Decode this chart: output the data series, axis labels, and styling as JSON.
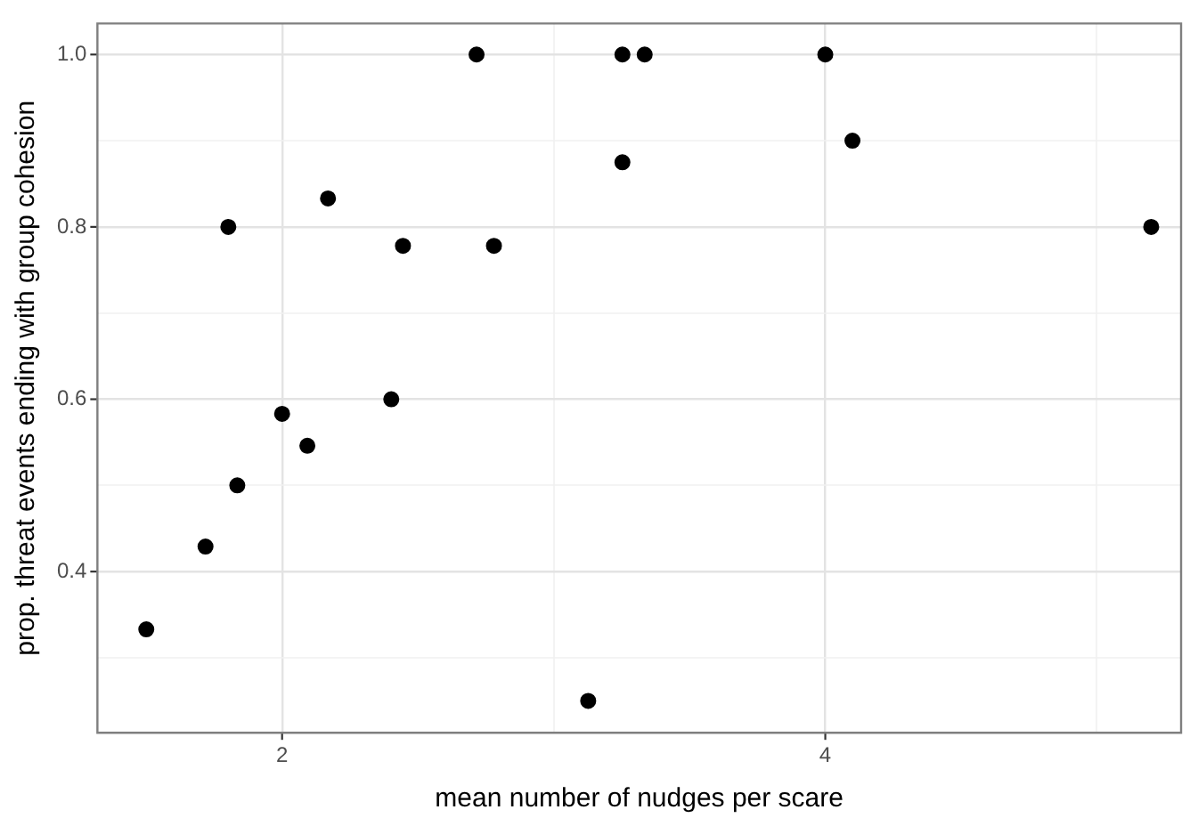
{
  "chart_data": {
    "type": "scatter",
    "xlabel": "mean number of nudges per scare",
    "ylabel": "prop. threat events ending with group cohesion",
    "x": [
      1.5,
      1.718,
      1.802,
      1.835,
      2.0,
      2.093,
      2.169,
      2.402,
      2.445,
      2.716,
      2.78,
      3.127,
      3.253,
      3.253,
      3.335,
      4.0,
      4.1,
      5.2
    ],
    "series": [
      {
        "color": "#000000",
        "values": [
          0.333,
          0.429,
          0.8,
          0.5,
          0.583,
          0.546,
          0.833,
          0.6,
          0.778,
          1.0,
          0.778,
          0.25,
          1.0,
          0.875,
          1.0,
          1.0,
          0.9,
          0.8
        ]
      }
    ],
    "xlim": [
      1.32,
      5.31
    ],
    "ylim": [
      0.213,
      1.036
    ],
    "xticks": [
      2,
      {
        "value": 3,
        "label": null
      },
      4,
      {
        "value": 5,
        "label": null
      }
    ],
    "yticks": [
      {
        "value": 0.3,
        "label": null
      },
      0.4,
      {
        "value": 0.5,
        "label": null
      },
      0.6,
      {
        "value": 0.7,
        "label": null
      },
      0.8,
      {
        "value": 0.9,
        "label": null
      },
      {
        "value": 1.0,
        "label": "1.0"
      }
    ],
    "grid": true,
    "marker": "circle",
    "legend": false
  }
}
